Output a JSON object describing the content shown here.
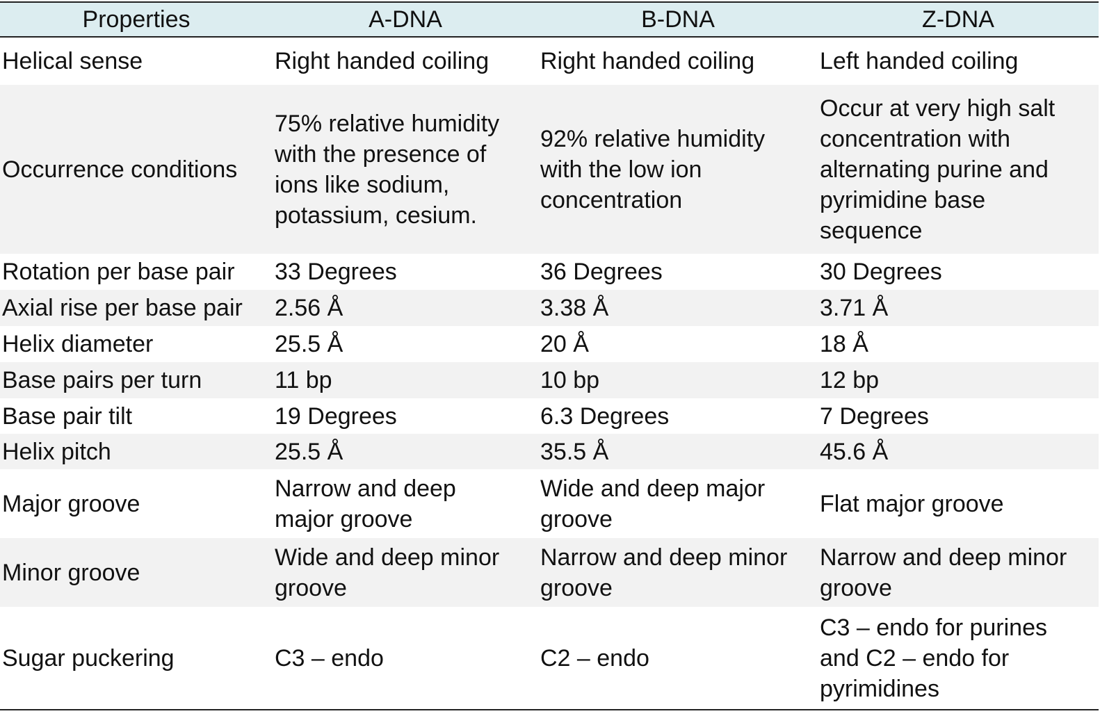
{
  "table": {
    "headers": [
      "Properties",
      "A-DNA",
      "B-DNA",
      "Z-DNA"
    ],
    "rows": [
      [
        "Helical sense",
        "Right handed coiling",
        "Right handed coiling",
        "Left handed coiling"
      ],
      [
        "Occurrence conditions",
        "75% relative humidity\nwith the presence of\nions like sodium,\npotassium, cesium.",
        "92% relative humidity\nwith the low ion\nconcentration",
        "Occur at very high salt\nconcentration with\nalternating purine and\npyrimidine base\nsequence"
      ],
      [
        "Rotation per base pair",
        "33 Degrees",
        "36 Degrees",
        "30 Degrees"
      ],
      [
        "Axial rise per base pair",
        "2.56 Å",
        "3.38 Å",
        "3.71 Å"
      ],
      [
        "Helix diameter",
        "25.5 Å",
        "20 Å",
        "18 Å"
      ],
      [
        "Base pairs per turn",
        "11 bp",
        "10 bp",
        "12 bp"
      ],
      [
        "Base pair tilt",
        "19 Degrees",
        "6.3 Degrees",
        "7 Degrees"
      ],
      [
        "Helix pitch",
        "25.5 Å",
        "35.5 Å",
        "45.6 Å"
      ],
      [
        "Major groove",
        "Narrow and deep\nmajor groove",
        "Wide and deep major\ngroove",
        "Flat major groove"
      ],
      [
        "Minor groove",
        "Wide and deep minor\ngroove",
        "Narrow and deep minor\ngroove",
        "Narrow and deep minor\ngroove"
      ],
      [
        "Sugar puckering",
        "C3 – endo",
        "C2 – endo",
        "C3 – endo for purines\nand C2 – endo for\npyrimidines"
      ]
    ]
  }
}
